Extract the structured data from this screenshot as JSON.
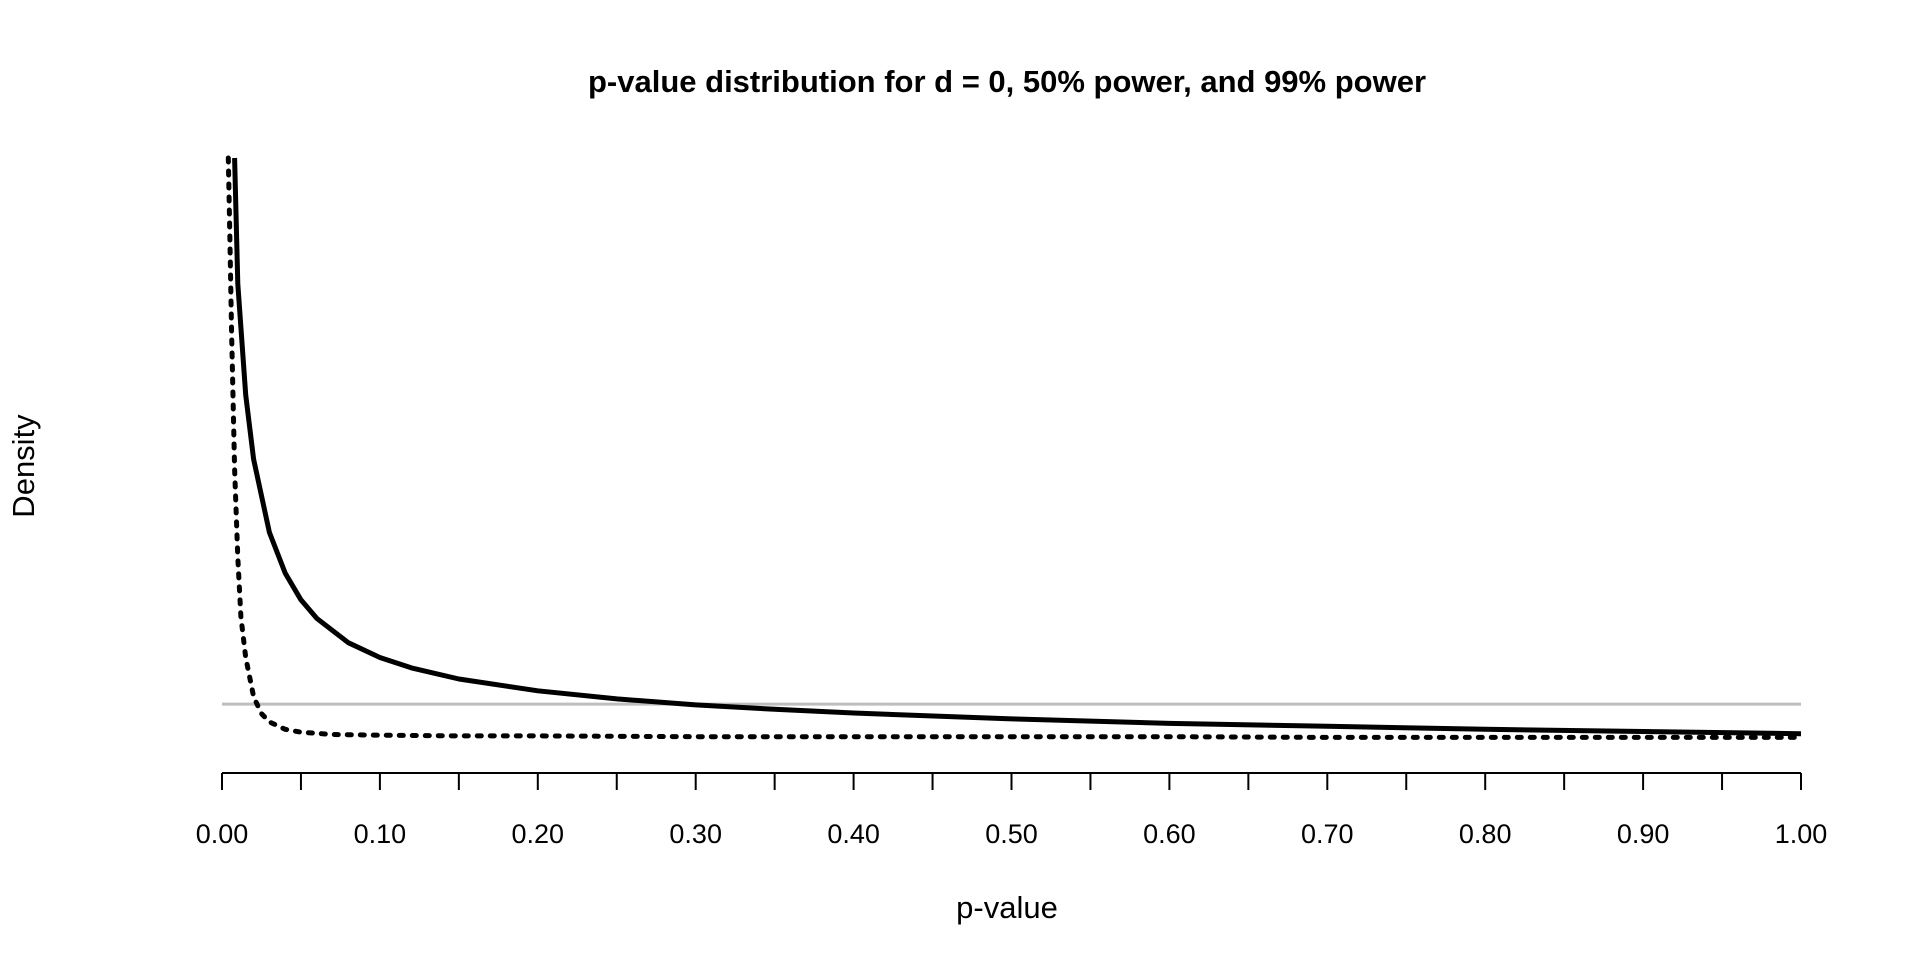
{
  "chart_data": {
    "type": "line",
    "title": "p-value distribution for d = 0, 50% power, and 99% power",
    "xlabel": "p-value",
    "ylabel": "Density",
    "xlim": [
      0,
      1
    ],
    "ylim": [
      0,
      8
    ],
    "x_ticks": [
      0.0,
      0.05,
      0.1,
      0.15,
      0.2,
      0.25,
      0.3,
      0.35,
      0.4,
      0.45,
      0.5,
      0.55,
      0.6,
      0.65,
      0.7,
      0.75,
      0.8,
      0.85,
      0.9,
      0.95,
      1.0
    ],
    "x_tick_labels": [
      "0.00",
      "0.10",
      "0.20",
      "0.30",
      "0.40",
      "0.50",
      "0.60",
      "0.70",
      "0.80",
      "0.90",
      "1.00"
    ],
    "grid": false,
    "series": [
      {
        "style": "solid",
        "color": "#000000",
        "x": [
          0.008,
          0.01,
          0.015,
          0.02,
          0.03,
          0.04,
          0.05,
          0.06,
          0.08,
          0.1,
          0.12,
          0.15,
          0.2,
          0.25,
          0.3,
          0.35,
          0.4,
          0.5,
          0.6,
          0.7,
          0.8,
          0.9,
          1.0
        ],
        "values": [
          8.0,
          6.3,
          4.8,
          3.93,
          2.94,
          2.39,
          2.03,
          1.78,
          1.45,
          1.25,
          1.11,
          0.96,
          0.8,
          0.69,
          0.61,
          0.55,
          0.5,
          0.42,
          0.36,
          0.32,
          0.28,
          0.25,
          0.22
        ]
      },
      {
        "style": "dotted",
        "color": "#000000",
        "x": [
          0.004,
          0.005,
          0.006,
          0.008,
          0.01,
          0.012,
          0.015,
          0.02,
          0.025,
          0.03,
          0.04,
          0.05,
          0.07,
          0.1,
          0.15,
          0.2,
          0.3,
          0.4,
          0.5,
          0.6,
          0.7,
          0.8,
          0.9,
          1.0
        ],
        "values": [
          8.0,
          6.9,
          5.7,
          3.8,
          2.6,
          1.8,
          1.25,
          0.72,
          0.49,
          0.38,
          0.28,
          0.24,
          0.21,
          0.2,
          0.19,
          0.19,
          0.18,
          0.18,
          0.18,
          0.18,
          0.17,
          0.17,
          0.17,
          0.17
        ]
      },
      {
        "style": "solid",
        "color": "#bebebe",
        "x": [
          0,
          1
        ],
        "values": [
          0.62,
          0.62
        ]
      }
    ]
  }
}
